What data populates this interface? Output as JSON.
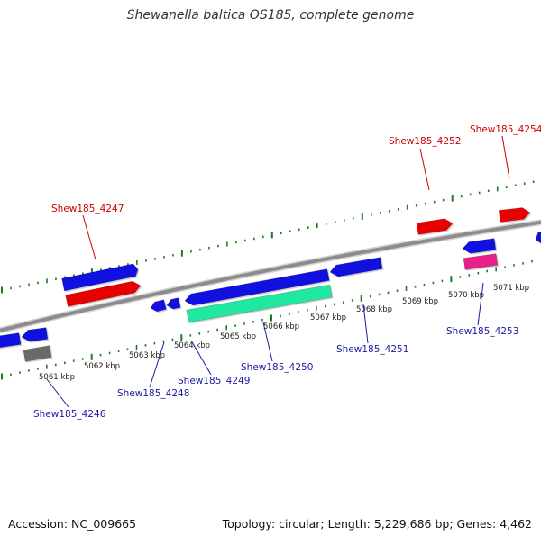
{
  "title": "Shewanella baltica OS185, complete genome",
  "footer": {
    "accession": "Accession: NC_009665",
    "summary": "Topology: circular; Length: 5,229,686 bp; Genes: 4,462"
  },
  "colors": {
    "forward_gene": "#1010e0",
    "reverse_gene": "#e80000",
    "rna": "#20e8a0",
    "misc": "#e8208a",
    "pseudo": "#6a6a6a",
    "backbone": "#8c8c8c",
    "ticks": "#1e7a1e",
    "label_forward": "#cc0000",
    "label_reverse": "#1a1aa0"
  },
  "scale_labels": [
    "5061 kbp",
    "5062 kbp",
    "5063 kbp",
    "5064 kbp",
    "5065 kbp",
    "5066 kbp",
    "5067 kbp",
    "5068 kbp",
    "5069 kbp",
    "5070 kbp",
    "5071 kbp"
  ],
  "gene_labels": [
    {
      "text": "Shew185_4247",
      "strand": "forward"
    },
    {
      "text": "Shew185_4252",
      "strand": "forward"
    },
    {
      "text": "Shew185_4254",
      "strand": "forward"
    },
    {
      "text": "Shew185_4246",
      "strand": "reverse"
    },
    {
      "text": "Shew185_4248",
      "strand": "reverse"
    },
    {
      "text": "Shew185_4249",
      "strand": "reverse"
    },
    {
      "text": "Shew185_4250",
      "strand": "reverse"
    },
    {
      "text": "Shew185_4251",
      "strand": "reverse"
    },
    {
      "text": "Shew185_4253",
      "strand": "reverse"
    }
  ]
}
